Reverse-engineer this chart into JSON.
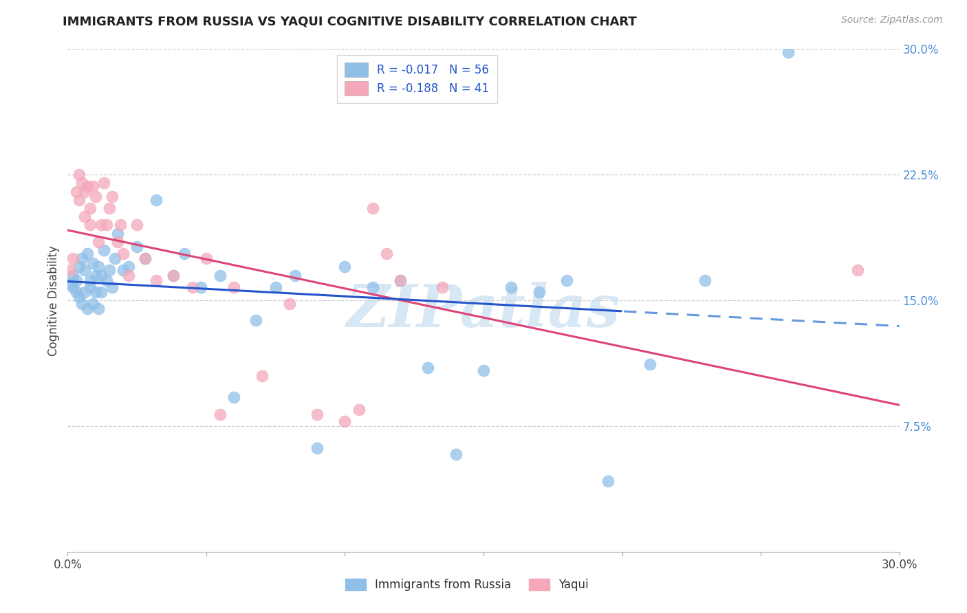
{
  "title": "IMMIGRANTS FROM RUSSIA VS YAQUI COGNITIVE DISABILITY CORRELATION CHART",
  "source": "Source: ZipAtlas.com",
  "xlabel_label": "Immigrants from Russia",
  "ylabel_label": "Cognitive Disability",
  "xlim": [
    0.0,
    0.3
  ],
  "ylim": [
    0.0,
    0.3
  ],
  "yticks": [
    0.075,
    0.15,
    0.225,
    0.3
  ],
  "ytick_labels": [
    "7.5%",
    "15.0%",
    "22.5%",
    "30.0%"
  ],
  "xtick_positions": [
    0.0,
    0.05,
    0.1,
    0.15,
    0.2,
    0.25,
    0.3
  ],
  "xtick_labels_show": {
    "0.0": "0.0%",
    "0.30": "30.0%"
  },
  "legend_r1": "R = -0.017",
  "legend_n1": "N = 56",
  "legend_r2": "R = -0.188",
  "legend_n2": "N = 41",
  "blue_color": "#90bfe8",
  "pink_color": "#f4a8ba",
  "line_blue": "#2255cc",
  "line_blue_dash": "#6699dd",
  "line_pink": "#dd4477",
  "watermark_text": "ZIPatlas",
  "watermark_color": "#c8ddf0",
  "blue_scatter_x": [
    0.001,
    0.002,
    0.002,
    0.003,
    0.003,
    0.004,
    0.004,
    0.005,
    0.005,
    0.006,
    0.006,
    0.007,
    0.007,
    0.008,
    0.008,
    0.009,
    0.009,
    0.01,
    0.01,
    0.011,
    0.011,
    0.012,
    0.012,
    0.013,
    0.014,
    0.015,
    0.016,
    0.017,
    0.018,
    0.02,
    0.022,
    0.025,
    0.028,
    0.032,
    0.038,
    0.042,
    0.048,
    0.055,
    0.06,
    0.068,
    0.075,
    0.082,
    0.09,
    0.1,
    0.11,
    0.12,
    0.13,
    0.14,
    0.15,
    0.16,
    0.17,
    0.18,
    0.195,
    0.21,
    0.23,
    0.26
  ],
  "blue_scatter_y": [
    0.16,
    0.158,
    0.165,
    0.155,
    0.162,
    0.17,
    0.152,
    0.175,
    0.148,
    0.168,
    0.155,
    0.178,
    0.145,
    0.162,
    0.158,
    0.172,
    0.148,
    0.165,
    0.155,
    0.17,
    0.145,
    0.165,
    0.155,
    0.18,
    0.162,
    0.168,
    0.158,
    0.175,
    0.19,
    0.168,
    0.17,
    0.182,
    0.175,
    0.21,
    0.165,
    0.178,
    0.158,
    0.165,
    0.092,
    0.138,
    0.158,
    0.165,
    0.062,
    0.17,
    0.158,
    0.162,
    0.11,
    0.058,
    0.108,
    0.158,
    0.155,
    0.162,
    0.042,
    0.112,
    0.162,
    0.298
  ],
  "pink_scatter_x": [
    0.001,
    0.002,
    0.003,
    0.004,
    0.004,
    0.005,
    0.006,
    0.006,
    0.007,
    0.008,
    0.008,
    0.009,
    0.01,
    0.011,
    0.012,
    0.013,
    0.014,
    0.015,
    0.016,
    0.018,
    0.019,
    0.02,
    0.022,
    0.025,
    0.028,
    0.032,
    0.038,
    0.045,
    0.05,
    0.055,
    0.06,
    0.07,
    0.08,
    0.09,
    0.1,
    0.105,
    0.11,
    0.115,
    0.12,
    0.135,
    0.285
  ],
  "pink_scatter_y": [
    0.168,
    0.175,
    0.215,
    0.225,
    0.21,
    0.22,
    0.2,
    0.215,
    0.218,
    0.205,
    0.195,
    0.218,
    0.212,
    0.185,
    0.195,
    0.22,
    0.195,
    0.205,
    0.212,
    0.185,
    0.195,
    0.178,
    0.165,
    0.195,
    0.175,
    0.162,
    0.165,
    0.158,
    0.175,
    0.082,
    0.158,
    0.105,
    0.148,
    0.082,
    0.078,
    0.085,
    0.205,
    0.178,
    0.162,
    0.158,
    0.168
  ]
}
